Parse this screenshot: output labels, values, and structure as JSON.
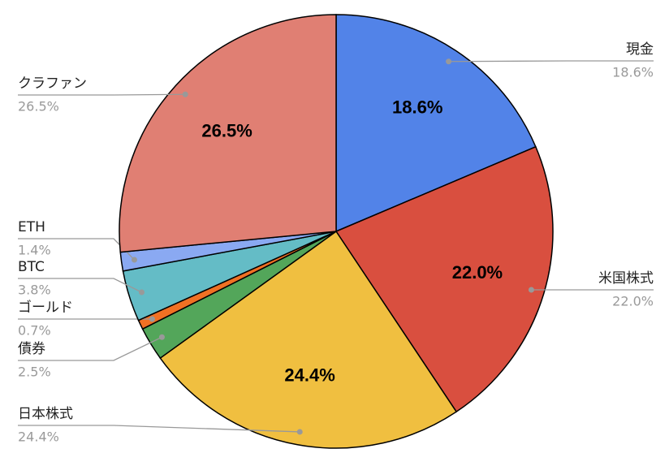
{
  "chart_data": {
    "type": "pie",
    "categories": [
      "現金",
      "米国株式",
      "日本株式",
      "債券",
      "ゴールド",
      "BTC",
      "ETH",
      "クラファン"
    ],
    "values": [
      18.6,
      22.0,
      24.4,
      2.5,
      0.7,
      3.8,
      1.4,
      26.5
    ],
    "value_labels": [
      "18.6%",
      "22.0%",
      "24.4%",
      "2.5%",
      "0.7%",
      "3.8%",
      "1.4%",
      "26.5%"
    ],
    "colors": [
      "#5283e8",
      "#d94f3f",
      "#f0bf40",
      "#53a65a",
      "#f07124",
      "#64bcc6",
      "#8aa9f2",
      "#e07f73"
    ]
  }
}
